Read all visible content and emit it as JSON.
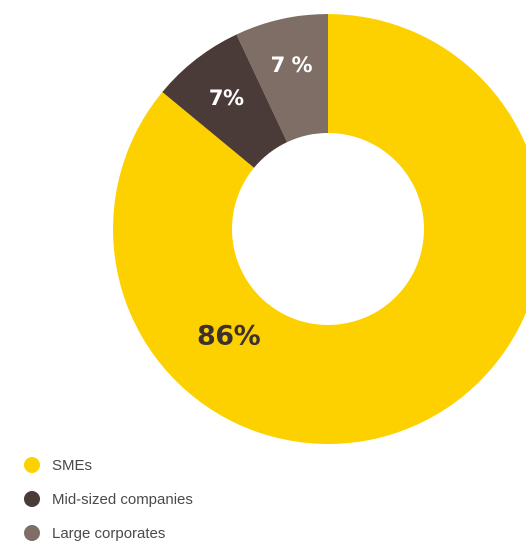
{
  "chart_data": {
    "type": "pie",
    "title": "",
    "categories": [
      "SMEs",
      "Mid-sized companies",
      "Large corporates"
    ],
    "values": [
      86,
      7,
      7
    ],
    "labels": [
      "86%",
      "7%",
      "7 %"
    ],
    "colors": [
      "#FDD100",
      "#4A3B39",
      "#7E6E66"
    ],
    "label_colors": [
      "#3E302D",
      "#FFFFFF",
      "#FFFFFF"
    ],
    "start": "top",
    "direction": "clockwise",
    "donut": true,
    "legend_position": "bottom-left"
  },
  "legend": {
    "items": [
      {
        "label": "SMEs",
        "color": "#FDD100"
      },
      {
        "label": "Mid-sized companies",
        "color": "#4A3B39"
      },
      {
        "label": "Large corporates",
        "color": "#7E6E66"
      }
    ]
  }
}
